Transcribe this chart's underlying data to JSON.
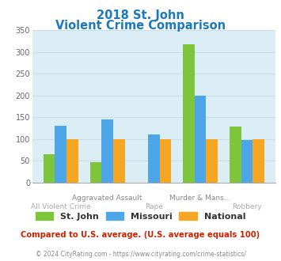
{
  "title_line1": "2018 St. John",
  "title_line2": "Violent Crime Comparison",
  "title_color": "#1a7abf",
  "categories": [
    "All Violent Crime",
    "Aggravated Assault",
    "Rape",
    "Murder & Mans...",
    "Robbery"
  ],
  "cat_top": [
    "",
    "Aggravated Assault",
    "",
    "Murder & Mans...",
    ""
  ],
  "cat_bot": [
    "All Violent Crime",
    "",
    "Rape",
    "",
    "Robbery"
  ],
  "st_john": [
    65,
    47,
    0,
    318,
    129
  ],
  "missouri": [
    131,
    145,
    110,
    200,
    98
  ],
  "national": [
    100,
    100,
    100,
    100,
    100
  ],
  "st_john_color": "#7dc63b",
  "missouri_color": "#4da6e8",
  "national_color": "#f5a623",
  "ylim": [
    0,
    350
  ],
  "yticks": [
    0,
    50,
    100,
    150,
    200,
    250,
    300,
    350
  ],
  "plot_bg": "#dceef5",
  "grid_color": "#c8dde8",
  "footer_text": "© 2024 CityRating.com - https://www.cityrating.com/crime-statistics/",
  "compare_text": "Compared to U.S. average. (U.S. average equals 100)",
  "compare_color": "#cc2200",
  "footer_color": "#888888",
  "legend_labels": [
    "St. John",
    "Missouri",
    "National"
  ],
  "bar_width": 0.25
}
